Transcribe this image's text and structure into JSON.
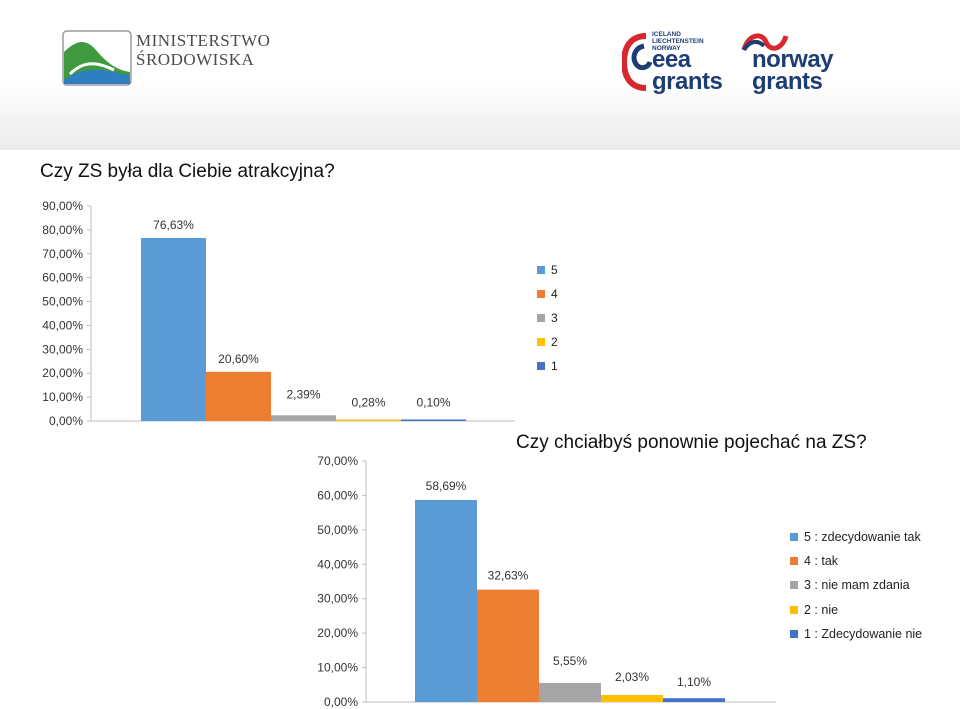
{
  "header": {
    "ministry_line1": "MINISTERSTWO",
    "ministry_line2": "ŚRODOWISKA",
    "eea_small_1": "ICELAND",
    "eea_small_2": "LIECHTENSTEIN",
    "eea_small_3": "NORWAY",
    "eea_line1": "eea",
    "eea_line2": "grants",
    "norway_line1": "norway",
    "norway_line2": "grants"
  },
  "colors": {
    "s5": "#5b9bd5",
    "s4": "#ed7d31",
    "s3": "#a5a5a5",
    "s2": "#ffc000",
    "s1": "#4472c4"
  },
  "chart_data": [
    {
      "type": "bar",
      "title": "Czy ZS była dla Ciebie atrakcyjna?",
      "categories": [
        "5",
        "4",
        "3",
        "2",
        "1"
      ],
      "values": [
        76.63,
        20.6,
        2.39,
        0.28,
        0.1
      ],
      "value_labels": [
        "76,63%",
        "20,60%",
        "2,39%",
        "0,28%",
        "0,10%"
      ],
      "yticks": [
        "0,00%",
        "10,00%",
        "20,00%",
        "30,00%",
        "40,00%",
        "50,00%",
        "60,00%",
        "70,00%",
        "80,00%",
        "90,00%"
      ],
      "ylim": [
        0,
        90
      ],
      "legend": [
        "5",
        "4",
        "3",
        "2",
        "1"
      ],
      "legend_position": "right"
    },
    {
      "type": "bar",
      "title": "Czy chciałbyś ponownie pojechać na ZS?",
      "categories": [
        "5",
        "4",
        "3",
        "2",
        "1"
      ],
      "values": [
        58.69,
        32.63,
        5.55,
        2.03,
        1.1
      ],
      "value_labels": [
        "58,69%",
        "32,63%",
        "5,55%",
        "2,03%",
        "1,10%"
      ],
      "yticks": [
        "0,00%",
        "10,00%",
        "20,00%",
        "30,00%",
        "40,00%",
        "50,00%",
        "60,00%",
        "70,00%"
      ],
      "ylim": [
        0,
        70
      ],
      "legend": [
        "5 : zdecydowanie tak",
        "4 : tak",
        "3 : nie mam zdania",
        "2 : nie",
        "1 : Zdecydowanie nie"
      ],
      "legend_position": "right"
    }
  ]
}
